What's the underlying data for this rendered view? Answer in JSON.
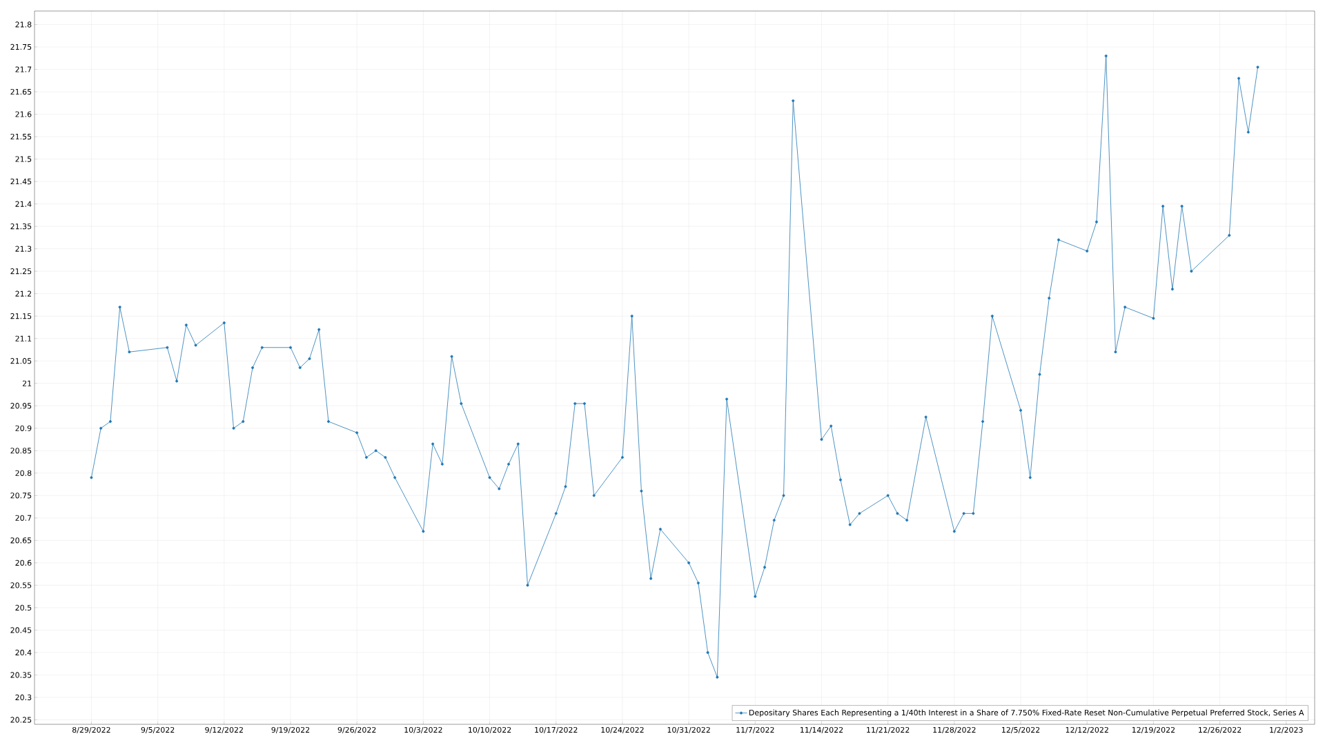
{
  "chart_data": {
    "type": "line",
    "x": [
      "2022-08-29",
      "2022-08-30",
      "2022-08-31",
      "2022-09-01",
      "2022-09-02",
      "2022-09-06",
      "2022-09-07",
      "2022-09-08",
      "2022-09-09",
      "2022-09-12",
      "2022-09-13",
      "2022-09-14",
      "2022-09-15",
      "2022-09-16",
      "2022-09-19",
      "2022-09-20",
      "2022-09-21",
      "2022-09-22",
      "2022-09-23",
      "2022-09-26",
      "2022-09-27",
      "2022-09-28",
      "2022-09-29",
      "2022-09-30",
      "2022-10-03",
      "2022-10-04",
      "2022-10-05",
      "2022-10-06",
      "2022-10-07",
      "2022-10-10",
      "2022-10-11",
      "2022-10-12",
      "2022-10-13",
      "2022-10-14",
      "2022-10-17",
      "2022-10-18",
      "2022-10-19",
      "2022-10-20",
      "2022-10-21",
      "2022-10-24",
      "2022-10-25",
      "2022-10-26",
      "2022-10-27",
      "2022-10-28",
      "2022-10-31",
      "2022-11-01",
      "2022-11-02",
      "2022-11-03",
      "2022-11-04",
      "2022-11-07",
      "2022-11-08",
      "2022-11-09",
      "2022-11-10",
      "2022-11-11",
      "2022-11-14",
      "2022-11-15",
      "2022-11-16",
      "2022-11-17",
      "2022-11-18",
      "2022-11-21",
      "2022-11-22",
      "2022-11-23",
      "2022-11-25",
      "2022-11-28",
      "2022-11-29",
      "2022-11-30",
      "2022-12-01",
      "2022-12-02",
      "2022-12-05",
      "2022-12-06",
      "2022-12-07",
      "2022-12-08",
      "2022-12-09",
      "2022-12-12",
      "2022-12-13",
      "2022-12-14",
      "2022-12-15",
      "2022-12-16",
      "2022-12-19",
      "2022-12-20",
      "2022-12-21",
      "2022-12-22",
      "2022-12-23",
      "2022-12-27",
      "2022-12-28",
      "2022-12-29",
      "2022-12-30"
    ],
    "series": [
      {
        "name": "Depositary Shares Each Representing a 1/40th Interest in a Share of 7.750% Fixed-Rate Reset Non-Cumulative Perpetual Preferred Stock, Series A",
        "color": "#1f77b4",
        "values": [
          20.79,
          20.9,
          20.915,
          21.17,
          21.07,
          21.08,
          21.005,
          21.13,
          21.085,
          21.135,
          20.9,
          20.915,
          21.035,
          21.08,
          21.08,
          21.035,
          21.055,
          21.12,
          20.915,
          20.89,
          20.835,
          20.85,
          20.835,
          20.79,
          20.67,
          20.865,
          20.82,
          21.06,
          20.955,
          20.79,
          20.765,
          20.82,
          20.865,
          20.55,
          20.71,
          20.77,
          20.955,
          20.955,
          20.75,
          20.835,
          21.15,
          20.76,
          20.565,
          20.675,
          20.6,
          20.555,
          20.4,
          20.345,
          20.965,
          20.525,
          20.59,
          20.695,
          20.75,
          21.63,
          20.875,
          20.905,
          20.785,
          20.685,
          20.71,
          20.75,
          20.71,
          20.695,
          20.925,
          20.67,
          20.71,
          20.71,
          20.915,
          21.15,
          20.94,
          20.79,
          21.02,
          21.19,
          21.32,
          21.295,
          21.36,
          21.73,
          21.07,
          21.17,
          21.145,
          21.395,
          21.21,
          21.395,
          21.25,
          21.33,
          21.68,
          21.56,
          21.705
        ]
      }
    ],
    "xlim": [
      "2022-08-23",
      "2023-01-05"
    ],
    "xticks": [
      {
        "value": "2022-08-29",
        "label": "8/29/2022"
      },
      {
        "value": "2022-09-05",
        "label": "9/5/2022"
      },
      {
        "value": "2022-09-12",
        "label": "9/12/2022"
      },
      {
        "value": "2022-09-19",
        "label": "9/19/2022"
      },
      {
        "value": "2022-09-26",
        "label": "9/26/2022"
      },
      {
        "value": "2022-10-03",
        "label": "10/3/2022"
      },
      {
        "value": "2022-10-10",
        "label": "10/10/2022"
      },
      {
        "value": "2022-10-17",
        "label": "10/17/2022"
      },
      {
        "value": "2022-10-24",
        "label": "10/24/2022"
      },
      {
        "value": "2022-10-31",
        "label": "10/31/2022"
      },
      {
        "value": "2022-11-07",
        "label": "11/7/2022"
      },
      {
        "value": "2022-11-14",
        "label": "11/14/2022"
      },
      {
        "value": "2022-11-21",
        "label": "11/21/2022"
      },
      {
        "value": "2022-11-28",
        "label": "11/28/2022"
      },
      {
        "value": "2022-12-05",
        "label": "12/5/2022"
      },
      {
        "value": "2022-12-12",
        "label": "12/12/2022"
      },
      {
        "value": "2022-12-19",
        "label": "12/19/2022"
      },
      {
        "value": "2022-12-26",
        "label": "12/26/2022"
      },
      {
        "value": "2023-01-02",
        "label": "1/2/2023"
      }
    ],
    "ylim": [
      20.24,
      21.83
    ],
    "yticks": [
      20.25,
      20.3,
      20.35,
      20.4,
      20.45,
      20.5,
      20.55,
      20.6,
      20.65,
      20.7,
      20.75,
      20.8,
      20.85,
      20.9,
      20.95,
      21,
      21.05,
      21.1,
      21.15,
      21.2,
      21.25,
      21.3,
      21.35,
      21.4,
      21.45,
      21.5,
      21.55,
      21.6,
      21.65,
      21.7,
      21.75,
      21.8
    ],
    "grid": true,
    "legend": "bottom right",
    "marker": "circle",
    "line_style": "solid"
  }
}
